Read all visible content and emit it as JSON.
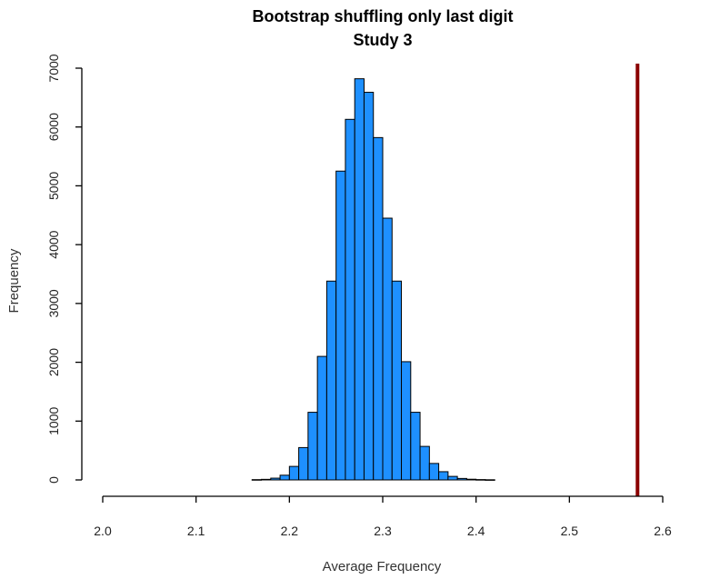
{
  "chart_data": {
    "type": "bar",
    "title": "Bootstrap shuffling only last digit",
    "subtitle": "Study 3",
    "xlabel": "Average Frequency",
    "ylabel": "Frequency",
    "xlim": [
      2.0,
      2.6
    ],
    "ylim": [
      0,
      7000
    ],
    "x_ticks": [
      "2.0",
      "2.1",
      "2.2",
      "2.3",
      "2.4",
      "2.5",
      "2.6"
    ],
    "y_ticks": [
      "0",
      "1000",
      "2000",
      "3000",
      "4000",
      "5000",
      "6000",
      "7000"
    ],
    "bin_width": 0.01,
    "bins_start": [
      2.16,
      2.17,
      2.18,
      2.19,
      2.2,
      2.21,
      2.22,
      2.23,
      2.24,
      2.25,
      2.26,
      2.27,
      2.28,
      2.29,
      2.3,
      2.31,
      2.32,
      2.33,
      2.34,
      2.35,
      2.36,
      2.37,
      2.38,
      2.39,
      2.4,
      2.41
    ],
    "values": [
      5,
      10,
      30,
      80,
      230,
      550,
      1150,
      2100,
      3380,
      5250,
      6130,
      6820,
      6590,
      5820,
      4450,
      3380,
      2010,
      1150,
      570,
      280,
      140,
      60,
      25,
      12,
      6,
      3
    ],
    "bar_color": "#1E90FF",
    "reference_line": {
      "x": 2.573,
      "color": "#8B0000"
    },
    "grid": false
  }
}
